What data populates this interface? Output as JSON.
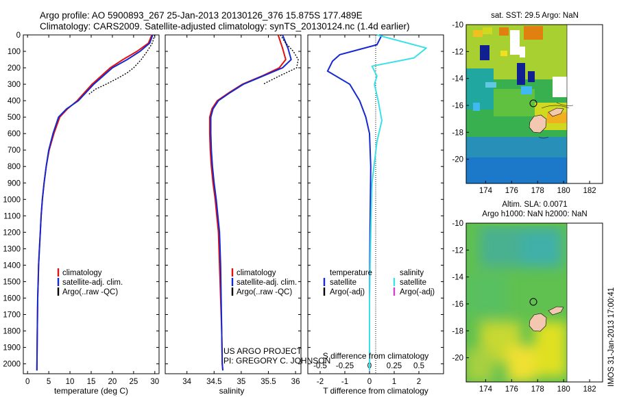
{
  "header": {
    "line1": "Argo profile: AO 5900893_267 25-Jan-2013 20130126_376 15.875S 177.489E",
    "line2": "Climatology: CARS2009. Satellite-adjusted climatology: synTS_20130124.nc (1.4d earlier)"
  },
  "colors": {
    "climatology": "#e01010",
    "satellite": "#1428d0",
    "argo": "#000000",
    "salinity_sat": "#38e0e8",
    "salinity_argo": "#d040c8"
  },
  "chart_data": [
    {
      "type": "line",
      "title": "",
      "xlabel": "temperature (deg C)",
      "ylabel": "",
      "xlim": [
        -1,
        31
      ],
      "ylim": [
        2060,
        0
      ],
      "xticks": [
        0,
        5,
        10,
        15,
        20,
        25,
        30
      ],
      "yticks": [
        0,
        100,
        200,
        300,
        400,
        500,
        600,
        700,
        800,
        900,
        1000,
        1100,
        1200,
        1300,
        1400,
        1500,
        1600,
        1700,
        1800,
        1900,
        2000
      ],
      "legend": {
        "placement": "lower-middle",
        "entries": [
          "climatology",
          "satellite-adj. clim.",
          "Argo(..raw -QC)"
        ]
      },
      "series": [
        {
          "name": "climatology",
          "x": [
            29.3,
            28.5,
            25.8,
            22.5,
            19.5,
            15.2,
            11.7,
            9.4,
            7.6,
            6.2,
            5.1,
            4.4,
            3.9,
            3.5,
            3.2,
            3.0,
            2.8,
            2.6,
            2.5,
            2.4,
            2.3,
            2.2
          ],
          "y": [
            0,
            50,
            100,
            150,
            200,
            300,
            400,
            450,
            500,
            600,
            700,
            800,
            900,
            1000,
            1100,
            1200,
            1300,
            1400,
            1500,
            1600,
            1800,
            2040
          ]
        },
        {
          "name": "satellite-adj. clim.",
          "x": [
            29.5,
            28.8,
            26.5,
            23.5,
            20.0,
            15.6,
            12.0,
            9.2,
            7.3,
            6.0,
            5.0,
            4.4,
            3.9,
            3.5,
            3.2,
            3.0,
            2.8,
            2.6,
            2.5,
            2.4,
            2.3,
            2.2
          ],
          "y": [
            0,
            50,
            100,
            150,
            200,
            300,
            400,
            450,
            500,
            600,
            700,
            800,
            900,
            1000,
            1100,
            1200,
            1300,
            1400,
            1500,
            1600,
            1800,
            2040
          ]
        },
        {
          "name": "Argo(..raw -QC)",
          "x": [
            30.0,
            29.4,
            28.2,
            26.8,
            25.0,
            23.5,
            21.5,
            18.5,
            16.0,
            14.5
          ],
          "y": [
            0,
            50,
            100,
            150,
            200,
            230,
            260,
            300,
            330,
            360
          ]
        }
      ]
    },
    {
      "type": "line",
      "title": "",
      "xlabel": "salinity",
      "ylabel": "",
      "xlim": [
        33.6,
        36.1
      ],
      "ylim": [
        2060,
        0
      ],
      "xticks": [
        34,
        34.5,
        35,
        35.5,
        36
      ],
      "legend": {
        "placement": "lower-middle",
        "entries": [
          "climatology",
          "satellite-adj. clim.",
          "Argo(..raw -QC)"
        ]
      },
      "annotation": [
        "US ARGO PROJECT",
        "PI: GREGORY C. JOHNSON"
      ],
      "series": [
        {
          "name": "climatology",
          "x": [
            35.68,
            35.76,
            35.82,
            35.7,
            35.38,
            35.02,
            34.78,
            34.56,
            34.46,
            34.42,
            34.42,
            34.43,
            34.45,
            34.48,
            34.52,
            34.55,
            34.58,
            34.6,
            34.62,
            34.64,
            34.65,
            34.66
          ],
          "y": [
            0,
            80,
            150,
            200,
            250,
            300,
            350,
            400,
            450,
            500,
            600,
            700,
            800,
            900,
            1000,
            1100,
            1200,
            1400,
            1600,
            1800,
            2000,
            2040
          ]
        },
        {
          "name": "satellite-adj. clim.",
          "x": [
            35.76,
            35.86,
            35.92,
            35.76,
            35.4,
            35.04,
            34.8,
            34.58,
            34.48,
            34.44,
            34.44,
            34.45,
            34.47,
            34.5,
            34.54,
            34.57,
            34.6,
            34.62,
            34.63,
            34.64,
            34.65,
            34.66
          ],
          "y": [
            0,
            80,
            150,
            200,
            250,
            300,
            350,
            400,
            450,
            500,
            600,
            700,
            800,
            900,
            1000,
            1100,
            1200,
            1400,
            1600,
            1800,
            2000,
            2040
          ]
        },
        {
          "name": "Argo(..raw -QC)",
          "x": [
            35.72,
            35.82,
            35.96,
            36.05,
            36.02,
            35.7,
            35.4
          ],
          "y": [
            0,
            50,
            100,
            150,
            200,
            250,
            300
          ]
        }
      ]
    },
    {
      "type": "line",
      "title": "",
      "xlabel": "T difference from climatology",
      "xlabel_top": "S difference from climatology",
      "ylabel": "",
      "xlim": [
        -2.5,
        3
      ],
      "ylim": [
        2060,
        0
      ],
      "xticks": [
        -2,
        -1,
        0,
        1,
        2
      ],
      "xticks_top": [
        "-0.5",
        "-0.25",
        "0",
        "0.25",
        "0.5"
      ],
      "legend": {
        "placement": "lower",
        "group_titles": [
          "temperature",
          "salinity"
        ],
        "entries": [
          "satellite",
          "Argo(-adj)",
          "satellite",
          "Argo(-adj)"
        ]
      },
      "series": [
        {
          "name": "temperature satellite",
          "x": [
            0.5,
            0.3,
            -1.2,
            -1.5,
            -1.7,
            -0.8,
            -0.4,
            -0.15,
            0.0,
            0.05,
            0.02,
            0.0,
            0.0
          ],
          "y": [
            0,
            60,
            120,
            160,
            220,
            300,
            400,
            500,
            600,
            800,
            1200,
            1600,
            2040
          ]
        },
        {
          "name": "salinity satellite",
          "x": [
            0.3,
            2.3,
            1.8,
            0.1,
            0.3,
            0.2,
            0.35,
            0.5,
            0.3,
            0.1,
            0.05,
            0.0,
            0.0
          ],
          "y": [
            0,
            80,
            140,
            190,
            250,
            300,
            400,
            520,
            650,
            900,
            1200,
            1600,
            2040
          ]
        }
      ]
    },
    {
      "type": "heatmap",
      "title": "sat. SST: 29.5 Argo: NaN",
      "xlabel": "",
      "ylabel": "",
      "xlim": [
        172.5,
        183
      ],
      "ylim": [
        -21.8,
        -10
      ],
      "xticks": [
        174,
        176,
        178,
        180,
        182
      ],
      "yticks": [
        -10,
        -12,
        -14,
        -16,
        -18,
        -20
      ],
      "marker": {
        "lon": 177.489,
        "lat": -15.875
      }
    },
    {
      "type": "heatmap",
      "title": "Altim. SLA: 0.0071",
      "subtitle": "Argo h1000: NaN h2000: NaN",
      "xlabel": "",
      "ylabel": "",
      "xlim": [
        172.5,
        183
      ],
      "ylim": [
        -21.8,
        -10
      ],
      "xticks": [
        174,
        176,
        178,
        180,
        182
      ],
      "yticks": [
        -10,
        -12,
        -14,
        -16,
        -18,
        -20
      ],
      "marker": {
        "lon": 177.489,
        "lat": -15.875
      }
    }
  ],
  "side_text": "IMOS 31-Jan-2013 17:00:41"
}
